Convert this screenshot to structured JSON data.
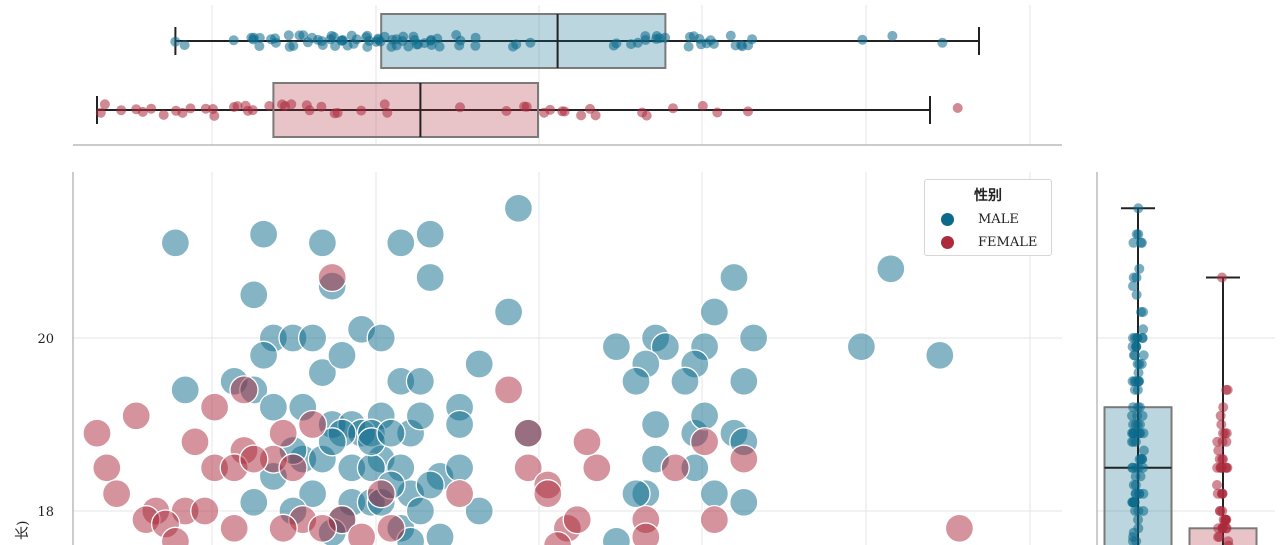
{
  "colors": {
    "male": "#0b6a8b",
    "female": "#ac2a3c"
  },
  "legend": {
    "title": "性别",
    "entries": [
      {
        "label": "MALE",
        "color": "#0b6a8b"
      },
      {
        "label": "FEMALE",
        "color": "#ac2a3c"
      }
    ]
  },
  "y_axis": {
    "label": "长)",
    "ticks": [
      "20",
      "18"
    ]
  },
  "chart_data": [
    {
      "type": "scatter",
      "legend_title": "性别",
      "ylim": [
        17.6,
        21.9
      ],
      "xlim": [
        0,
        1
      ],
      "grid": true,
      "legend_position": "top-right",
      "y_ticks": [
        18,
        20
      ],
      "series": [
        {
          "name": "MALE",
          "color": "#0b6a8b",
          "points": [
            [
              0.13,
              21.1
            ],
            [
              0.22,
              21.2
            ],
            [
              0.28,
              21.1
            ],
            [
              0.36,
              21.1
            ],
            [
              0.39,
              21.2
            ],
            [
              0.48,
              21.5
            ],
            [
              0.86,
              20.8
            ],
            [
              0.21,
              20.5
            ],
            [
              0.29,
              20.6
            ],
            [
              0.39,
              20.7
            ],
            [
              0.7,
              20.7
            ],
            [
              0.47,
              20.3
            ],
            [
              0.68,
              20.3
            ],
            [
              0.32,
              20.1
            ],
            [
              0.34,
              20.0
            ],
            [
              0.23,
              20.0
            ],
            [
              0.25,
              20.0
            ],
            [
              0.27,
              20.0
            ],
            [
              0.62,
              20.0
            ],
            [
              0.67,
              19.9
            ],
            [
              0.72,
              20.0
            ],
            [
              0.22,
              19.8
            ],
            [
              0.58,
              19.9
            ],
            [
              0.63,
              19.9
            ],
            [
              0.83,
              19.9
            ],
            [
              0.91,
              19.8
            ],
            [
              0.44,
              19.7
            ],
            [
              0.61,
              19.7
            ],
            [
              0.28,
              19.6
            ],
            [
              0.6,
              19.5
            ],
            [
              0.66,
              19.7
            ],
            [
              0.3,
              19.8
            ],
            [
              0.14,
              19.4
            ],
            [
              0.19,
              19.5
            ],
            [
              0.21,
              19.4
            ],
            [
              0.36,
              19.5
            ],
            [
              0.38,
              19.5
            ],
            [
              0.65,
              19.5
            ],
            [
              0.71,
              19.5
            ],
            [
              0.23,
              19.2
            ],
            [
              0.26,
              19.2
            ],
            [
              0.29,
              19.0
            ],
            [
              0.34,
              19.1
            ],
            [
              0.31,
              19.0
            ],
            [
              0.37,
              18.9
            ],
            [
              0.32,
              18.9
            ],
            [
              0.3,
              18.9
            ],
            [
              0.33,
              18.9
            ],
            [
              0.42,
              19.2
            ],
            [
              0.42,
              19.0
            ],
            [
              0.38,
              19.1
            ],
            [
              0.62,
              19.0
            ],
            [
              0.66,
              18.9
            ],
            [
              0.67,
              19.1
            ],
            [
              0.7,
              18.9
            ],
            [
              0.71,
              18.8
            ],
            [
              0.26,
              18.6
            ],
            [
              0.25,
              18.7
            ],
            [
              0.28,
              18.6
            ],
            [
              0.34,
              18.6
            ],
            [
              0.31,
              18.5
            ],
            [
              0.33,
              18.5
            ],
            [
              0.36,
              18.5
            ],
            [
              0.4,
              18.4
            ],
            [
              0.37,
              18.2
            ],
            [
              0.42,
              18.5
            ],
            [
              0.62,
              18.6
            ],
            [
              0.66,
              18.5
            ],
            [
              0.61,
              18.2
            ],
            [
              0.6,
              18.2
            ],
            [
              0.68,
              18.2
            ],
            [
              0.71,
              18.1
            ],
            [
              0.49,
              18.9
            ],
            [
              0.23,
              18.4
            ],
            [
              0.31,
              18.1
            ],
            [
              0.33,
              18.1
            ],
            [
              0.34,
              18.1
            ],
            [
              0.27,
              18.2
            ],
            [
              0.21,
              18.1
            ],
            [
              0.25,
              18.0
            ],
            [
              0.3,
              17.9
            ],
            [
              0.44,
              18.0
            ],
            [
              0.36,
              17.8
            ],
            [
              0.38,
              18.0
            ],
            [
              0.4,
              17.7
            ],
            [
              0.37,
              17.65
            ],
            [
              0.58,
              17.65
            ],
            [
              0.29,
              17.75
            ],
            [
              0.35,
              18.3
            ],
            [
              0.39,
              18.3
            ],
            [
              0.29,
              18.8
            ],
            [
              0.33,
              18.8
            ],
            [
              0.35,
              18.9
            ]
          ]
        },
        {
          "name": "FEMALE",
          "color": "#ac2a3c",
          "points": [
            [
              0.29,
              20.7
            ],
            [
              0.09,
              19.1
            ],
            [
              0.05,
              18.9
            ],
            [
              0.15,
              18.8
            ],
            [
              0.17,
              19.2
            ],
            [
              0.2,
              19.4
            ],
            [
              0.24,
              18.9
            ],
            [
              0.27,
              19.0
            ],
            [
              0.06,
              18.5
            ],
            [
              0.07,
              18.2
            ],
            [
              0.11,
              18.0
            ],
            [
              0.1,
              17.9
            ],
            [
              0.14,
              18.0
            ],
            [
              0.12,
              17.85
            ],
            [
              0.16,
              18.0
            ],
            [
              0.19,
              17.8
            ],
            [
              0.17,
              18.5
            ],
            [
              0.2,
              18.7
            ],
            [
              0.23,
              18.6
            ],
            [
              0.19,
              18.5
            ],
            [
              0.21,
              18.6
            ],
            [
              0.25,
              18.5
            ],
            [
              0.3,
              17.9
            ],
            [
              0.32,
              17.7
            ],
            [
              0.26,
              17.9
            ],
            [
              0.28,
              17.8
            ],
            [
              0.24,
              17.8
            ],
            [
              0.35,
              17.8
            ],
            [
              0.34,
              18.2
            ],
            [
              0.42,
              18.2
            ],
            [
              0.49,
              18.5
            ],
            [
              0.51,
              18.3
            ],
            [
              0.53,
              17.8
            ],
            [
              0.54,
              17.9
            ],
            [
              0.56,
              18.5
            ],
            [
              0.55,
              18.8
            ],
            [
              0.49,
              18.9
            ],
            [
              0.51,
              18.2
            ],
            [
              0.61,
              17.9
            ],
            [
              0.64,
              18.5
            ],
            [
              0.67,
              18.8
            ],
            [
              0.71,
              18.6
            ],
            [
              0.68,
              17.9
            ],
            [
              0.47,
              19.4
            ],
            [
              0.61,
              17.7
            ],
            [
              0.52,
              17.6
            ],
            [
              0.93,
              17.8
            ],
            [
              0.13,
              17.65
            ]
          ]
        }
      ]
    },
    {
      "type": "box",
      "orientation": "horizontal",
      "series": [
        {
          "name": "MALE",
          "color": "#0b6a8b",
          "min": 0.13,
          "q1": 0.34,
          "median": 0.52,
          "q3": 0.63,
          "max": 0.95
        },
        {
          "name": "FEMALE",
          "color": "#ac2a3c",
          "min": 0.05,
          "q1": 0.23,
          "median": 0.38,
          "q3": 0.5,
          "max": 0.9
        }
      ]
    },
    {
      "type": "box",
      "orientation": "vertical",
      "ylim": [
        17.6,
        21.9
      ],
      "series": [
        {
          "name": "MALE",
          "color": "#0b6a8b",
          "min": 17.6,
          "q1": 17.6,
          "median": 18.5,
          "q3": 19.2,
          "max": 21.5
        },
        {
          "name": "FEMALE",
          "color": "#ac2a3c",
          "min": 17.6,
          "q1": 17.6,
          "median": 17.6,
          "q3": 17.8,
          "max": 20.7
        }
      ]
    }
  ]
}
